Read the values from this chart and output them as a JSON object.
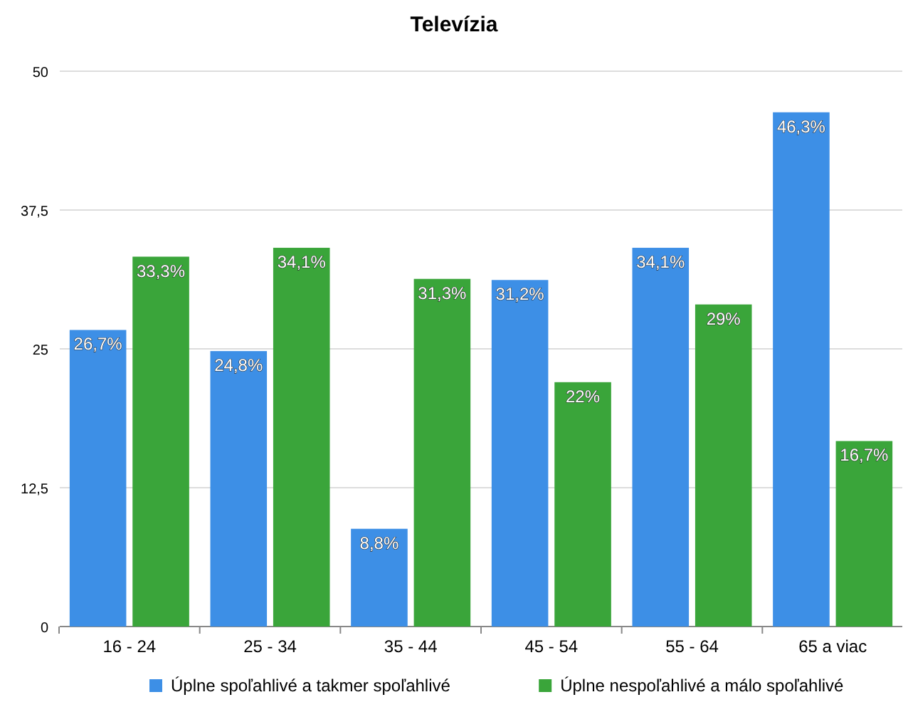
{
  "chart_data": {
    "type": "bar",
    "title": "Televízia",
    "categories": [
      "16 - 24",
      "25 - 34",
      "35 - 44",
      "45 - 54",
      "55 - 64",
      "65 a viac"
    ],
    "series": [
      {
        "name": "Úplne spoľahlivé a takmer spoľahlivé",
        "color": "#3d8fe6",
        "values": [
          26.7,
          24.8,
          8.8,
          31.2,
          34.1,
          46.3
        ],
        "value_labels": [
          "26,7%",
          "24,8%",
          "8,8%",
          "31,2%",
          "34,1%",
          "46,3%"
        ]
      },
      {
        "name": "Úplne nespoľahlivé a málo spoľahlivé",
        "color": "#3aa53a",
        "values": [
          33.3,
          34.1,
          31.3,
          22,
          29,
          16.7
        ],
        "value_labels": [
          "33,3%",
          "34,1%",
          "31,3%",
          "22%",
          "29%",
          "16,7%"
        ]
      }
    ],
    "ylim": [
      0,
      50
    ],
    "yticks": [
      0,
      {
        "value": 12.5,
        "label": "12,5"
      },
      25,
      {
        "value": 37.5,
        "label": "37,5"
      },
      50
    ],
    "grid": "y",
    "legend": "bottom"
  }
}
